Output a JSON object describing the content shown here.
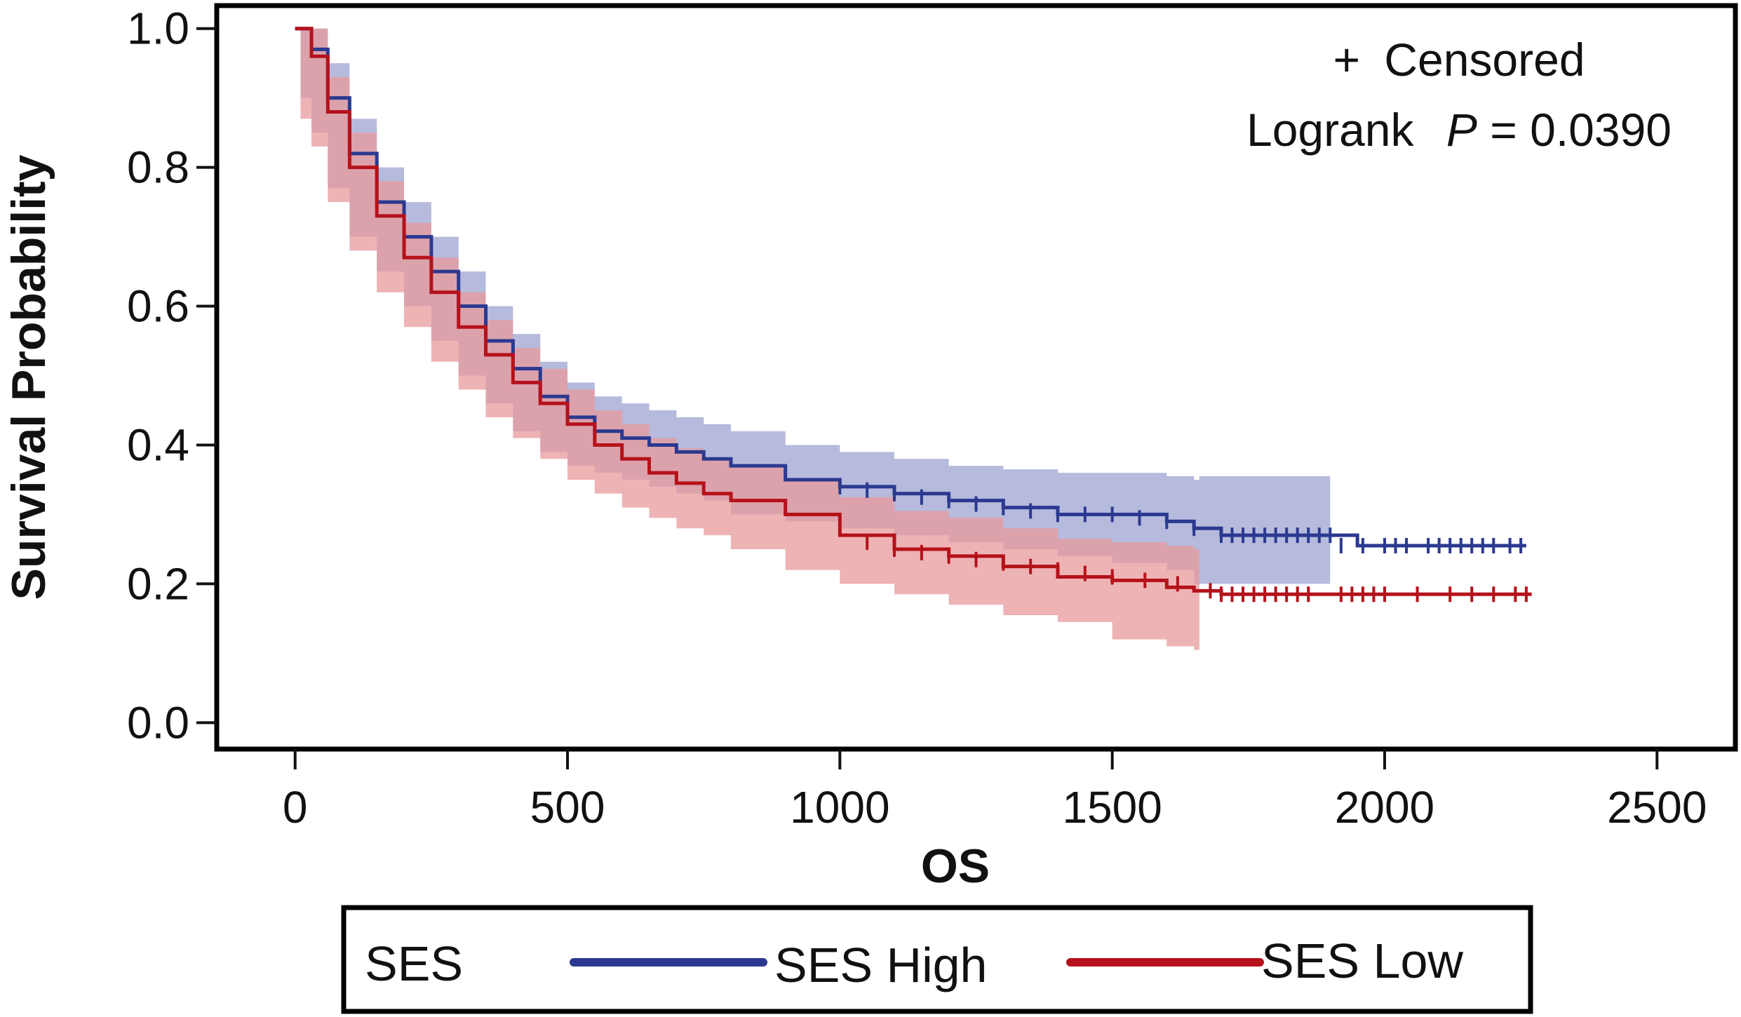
{
  "chart_data": {
    "type": "line",
    "subtype": "kaplan-meier",
    "xlabel": "OS",
    "ylabel": "Survival Probability",
    "xlim": [
      -140,
      2640
    ],
    "ylim": [
      -0.035,
      1.03
    ],
    "xticks": [
      0,
      500,
      1000,
      1500,
      2000,
      2500
    ],
    "yticks": [
      0.0,
      0.2,
      0.4,
      0.6,
      0.8,
      1.0
    ],
    "xtick_labels": [
      "0",
      "500",
      "1000",
      "1500",
      "2000",
      "2500"
    ],
    "ytick_labels": [
      "0.0",
      "0.2",
      "0.4",
      "0.6",
      "0.8",
      "1.0"
    ],
    "annotations": {
      "censored_mark": "+",
      "censored_label": "Censored",
      "logrank_label": "Logrank",
      "p_label": "P",
      "p_value": "= 0.0390"
    },
    "legend": {
      "title": "SES",
      "placement": "bottom",
      "entries": [
        "SES High",
        "SES Low"
      ]
    },
    "colors": {
      "high": "#2b3990",
      "high_band": "#9ea3d0",
      "low": "#b5121b",
      "low_band": "#e8999c"
    },
    "series": [
      {
        "name": "SES High",
        "x": [
          0,
          10,
          30,
          60,
          100,
          150,
          200,
          250,
          300,
          350,
          400,
          450,
          500,
          550,
          600,
          650,
          700,
          750,
          800,
          900,
          1000,
          1100,
          1200,
          1300,
          1400,
          1500,
          1600,
          1650,
          1700,
          1900,
          1950,
          2260
        ],
        "y": [
          1.0,
          1.0,
          0.97,
          0.9,
          0.82,
          0.75,
          0.7,
          0.65,
          0.6,
          0.55,
          0.51,
          0.47,
          0.44,
          0.42,
          0.41,
          0.4,
          0.39,
          0.38,
          0.37,
          0.35,
          0.34,
          0.33,
          0.32,
          0.31,
          0.3,
          0.3,
          0.29,
          0.28,
          0.27,
          0.27,
          0.255,
          0.255
        ],
        "ci_x": [
          0,
          10,
          30,
          60,
          100,
          150,
          200,
          250,
          300,
          350,
          400,
          450,
          500,
          550,
          600,
          650,
          700,
          750,
          800,
          900,
          1000,
          1100,
          1200,
          1300,
          1400,
          1500,
          1600,
          1650,
          1660,
          1900
        ],
        "ci_upper": [
          1.0,
          1.0,
          1.0,
          0.95,
          0.87,
          0.8,
          0.75,
          0.7,
          0.65,
          0.6,
          0.56,
          0.52,
          0.49,
          0.47,
          0.46,
          0.45,
          0.44,
          0.43,
          0.42,
          0.4,
          0.39,
          0.38,
          0.37,
          0.365,
          0.36,
          0.36,
          0.355,
          0.35,
          0.355,
          0.355
        ],
        "ci_lower": [
          1.0,
          1.0,
          0.9,
          0.85,
          0.77,
          0.7,
          0.65,
          0.6,
          0.55,
          0.5,
          0.46,
          0.42,
          0.39,
          0.37,
          0.36,
          0.35,
          0.34,
          0.33,
          0.32,
          0.3,
          0.29,
          0.28,
          0.27,
          0.26,
          0.25,
          0.24,
          0.23,
          0.22,
          0.2,
          0.2
        ],
        "censored_x": [
          1000,
          1050,
          1100,
          1150,
          1200,
          1250,
          1300,
          1350,
          1400,
          1450,
          1500,
          1550,
          1600,
          1650,
          1700,
          1720,
          1740,
          1760,
          1780,
          1800,
          1820,
          1840,
          1860,
          1880,
          1900,
          1920,
          1960,
          2000,
          2020,
          2040,
          2080,
          2100,
          2120,
          2140,
          2160,
          2180,
          2200,
          2230,
          2250
        ],
        "censored_y": [
          0.34,
          0.335,
          0.33,
          0.325,
          0.32,
          0.315,
          0.31,
          0.305,
          0.3,
          0.3,
          0.3,
          0.295,
          0.29,
          0.28,
          0.27,
          0.27,
          0.27,
          0.27,
          0.27,
          0.27,
          0.27,
          0.27,
          0.27,
          0.27,
          0.27,
          0.255,
          0.255,
          0.255,
          0.255,
          0.255,
          0.255,
          0.255,
          0.255,
          0.255,
          0.255,
          0.255,
          0.255,
          0.255,
          0.255
        ]
      },
      {
        "name": "SES Low",
        "x": [
          0,
          10,
          30,
          60,
          100,
          150,
          200,
          250,
          300,
          350,
          400,
          450,
          500,
          550,
          600,
          650,
          700,
          750,
          800,
          900,
          1000,
          1100,
          1200,
          1300,
          1400,
          1500,
          1600,
          1650,
          1700,
          2270
        ],
        "y": [
          1.0,
          1.0,
          0.96,
          0.88,
          0.8,
          0.73,
          0.67,
          0.62,
          0.57,
          0.53,
          0.49,
          0.46,
          0.43,
          0.4,
          0.38,
          0.36,
          0.345,
          0.33,
          0.32,
          0.3,
          0.27,
          0.25,
          0.24,
          0.225,
          0.21,
          0.205,
          0.195,
          0.19,
          0.185,
          0.185
        ],
        "ci_x": [
          0,
          10,
          30,
          60,
          100,
          150,
          200,
          250,
          300,
          350,
          400,
          450,
          500,
          550,
          600,
          650,
          700,
          750,
          800,
          900,
          1000,
          1100,
          1200,
          1300,
          1400,
          1500,
          1600,
          1650,
          1660
        ],
        "ci_upper": [
          1.0,
          1.0,
          1.0,
          0.93,
          0.85,
          0.78,
          0.72,
          0.67,
          0.62,
          0.58,
          0.54,
          0.51,
          0.48,
          0.45,
          0.43,
          0.41,
          0.395,
          0.38,
          0.37,
          0.35,
          0.325,
          0.305,
          0.295,
          0.28,
          0.265,
          0.26,
          0.255,
          0.25,
          0.25
        ],
        "ci_lower": [
          1.0,
          1.0,
          0.87,
          0.83,
          0.75,
          0.68,
          0.62,
          0.57,
          0.52,
          0.48,
          0.44,
          0.41,
          0.38,
          0.35,
          0.33,
          0.31,
          0.295,
          0.28,
          0.27,
          0.25,
          0.22,
          0.2,
          0.185,
          0.17,
          0.155,
          0.145,
          0.12,
          0.11,
          0.105
        ],
        "censored_x": [
          1050,
          1100,
          1150,
          1200,
          1250,
          1300,
          1350,
          1400,
          1450,
          1500,
          1560,
          1620,
          1680,
          1700,
          1720,
          1740,
          1760,
          1780,
          1800,
          1820,
          1840,
          1860,
          1920,
          1940,
          1960,
          1980,
          2000,
          2060,
          2120,
          2160,
          2200,
          2240,
          2260
        ],
        "censored_y": [
          0.26,
          0.25,
          0.245,
          0.24,
          0.235,
          0.23,
          0.225,
          0.22,
          0.215,
          0.21,
          0.205,
          0.2,
          0.19,
          0.185,
          0.185,
          0.185,
          0.185,
          0.185,
          0.185,
          0.185,
          0.185,
          0.185,
          0.185,
          0.185,
          0.185,
          0.185,
          0.185,
          0.185,
          0.185,
          0.185,
          0.185,
          0.185,
          0.185
        ]
      }
    ]
  }
}
